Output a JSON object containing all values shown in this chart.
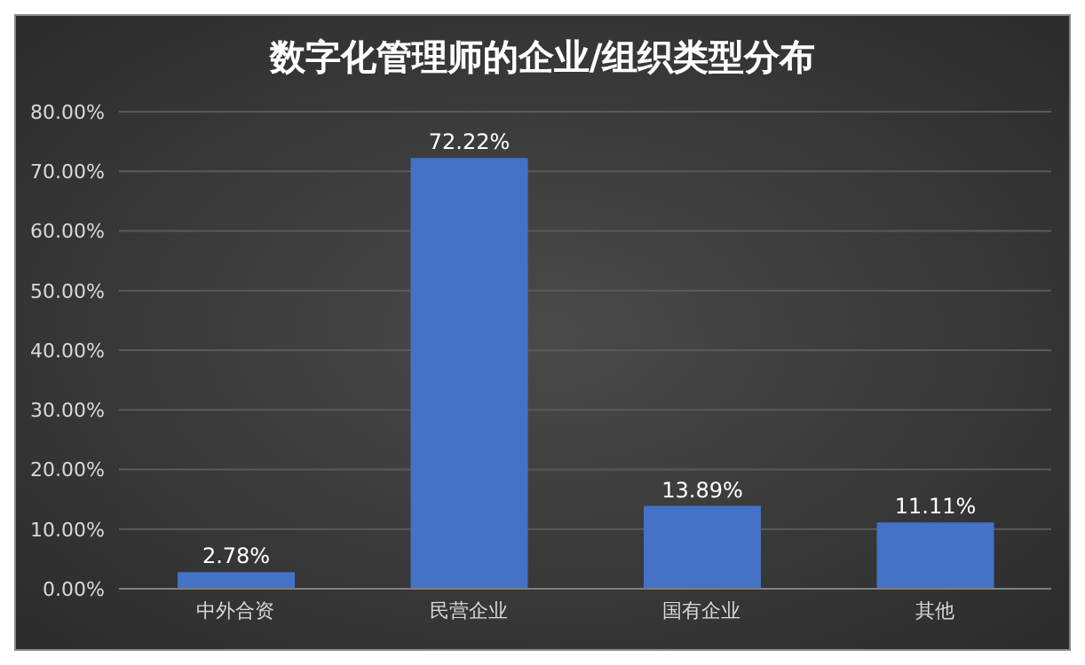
{
  "chart_data": {
    "type": "bar",
    "title": "数字化管理师的企业/组织类型分布",
    "categories": [
      "中外合资",
      "民营企业",
      "国有企业",
      "其他"
    ],
    "values": [
      2.78,
      72.22,
      13.89,
      11.11
    ],
    "value_labels": [
      "2.78%",
      "72.22%",
      "13.89%",
      "11.11%"
    ],
    "color": "#4472c4",
    "ylim": [
      0,
      80
    ],
    "yticks": [
      {
        "value": 0,
        "label": "0.00%"
      },
      {
        "value": 10,
        "label": "10.00%"
      },
      {
        "value": 20,
        "label": "20.00%"
      },
      {
        "value": 30,
        "label": "30.00%"
      },
      {
        "value": 40,
        "label": "40.00%"
      },
      {
        "value": 50,
        "label": "50.00%"
      },
      {
        "value": 60,
        "label": "60.00%"
      },
      {
        "value": 70,
        "label": "70.00%"
      },
      {
        "value": 80,
        "label": "80.00%"
      }
    ],
    "grid": "y",
    "legend": false
  }
}
